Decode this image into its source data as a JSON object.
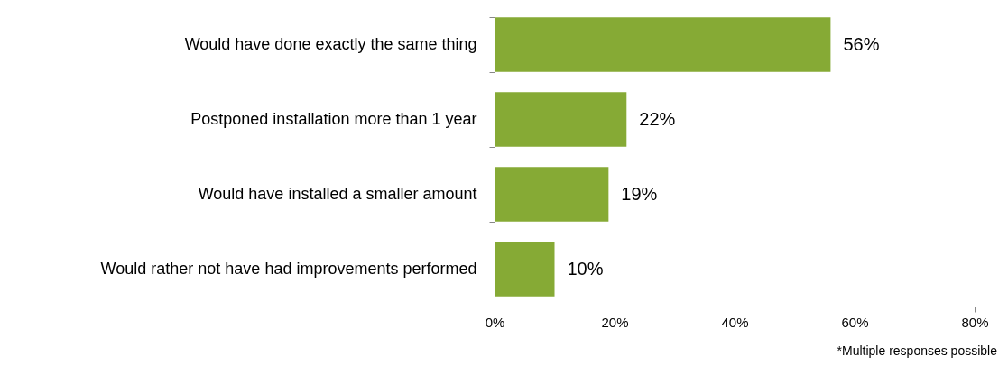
{
  "chart_data": {
    "type": "bar",
    "orientation": "horizontal",
    "categories": [
      "Would have done exactly the same thing",
      "Postponed installation more than 1 year",
      "Would have installed a smaller amount",
      "Would rather not have had improvements performed"
    ],
    "values": [
      56,
      22,
      19,
      10
    ],
    "color": "#86aa35",
    "value_labels": [
      "56%",
      "22%",
      "19%",
      "10%"
    ],
    "xlim": [
      0,
      80
    ],
    "xticks": [
      {
        "value": 0,
        "label": "0%"
      },
      {
        "value": 20,
        "label": "20%"
      },
      {
        "value": 40,
        "label": "40%"
      },
      {
        "value": 60,
        "label": "60%"
      },
      {
        "value": 80,
        "label": "80%"
      }
    ],
    "grid": false,
    "annotations": [
      "*Multiple responses possible"
    ]
  }
}
